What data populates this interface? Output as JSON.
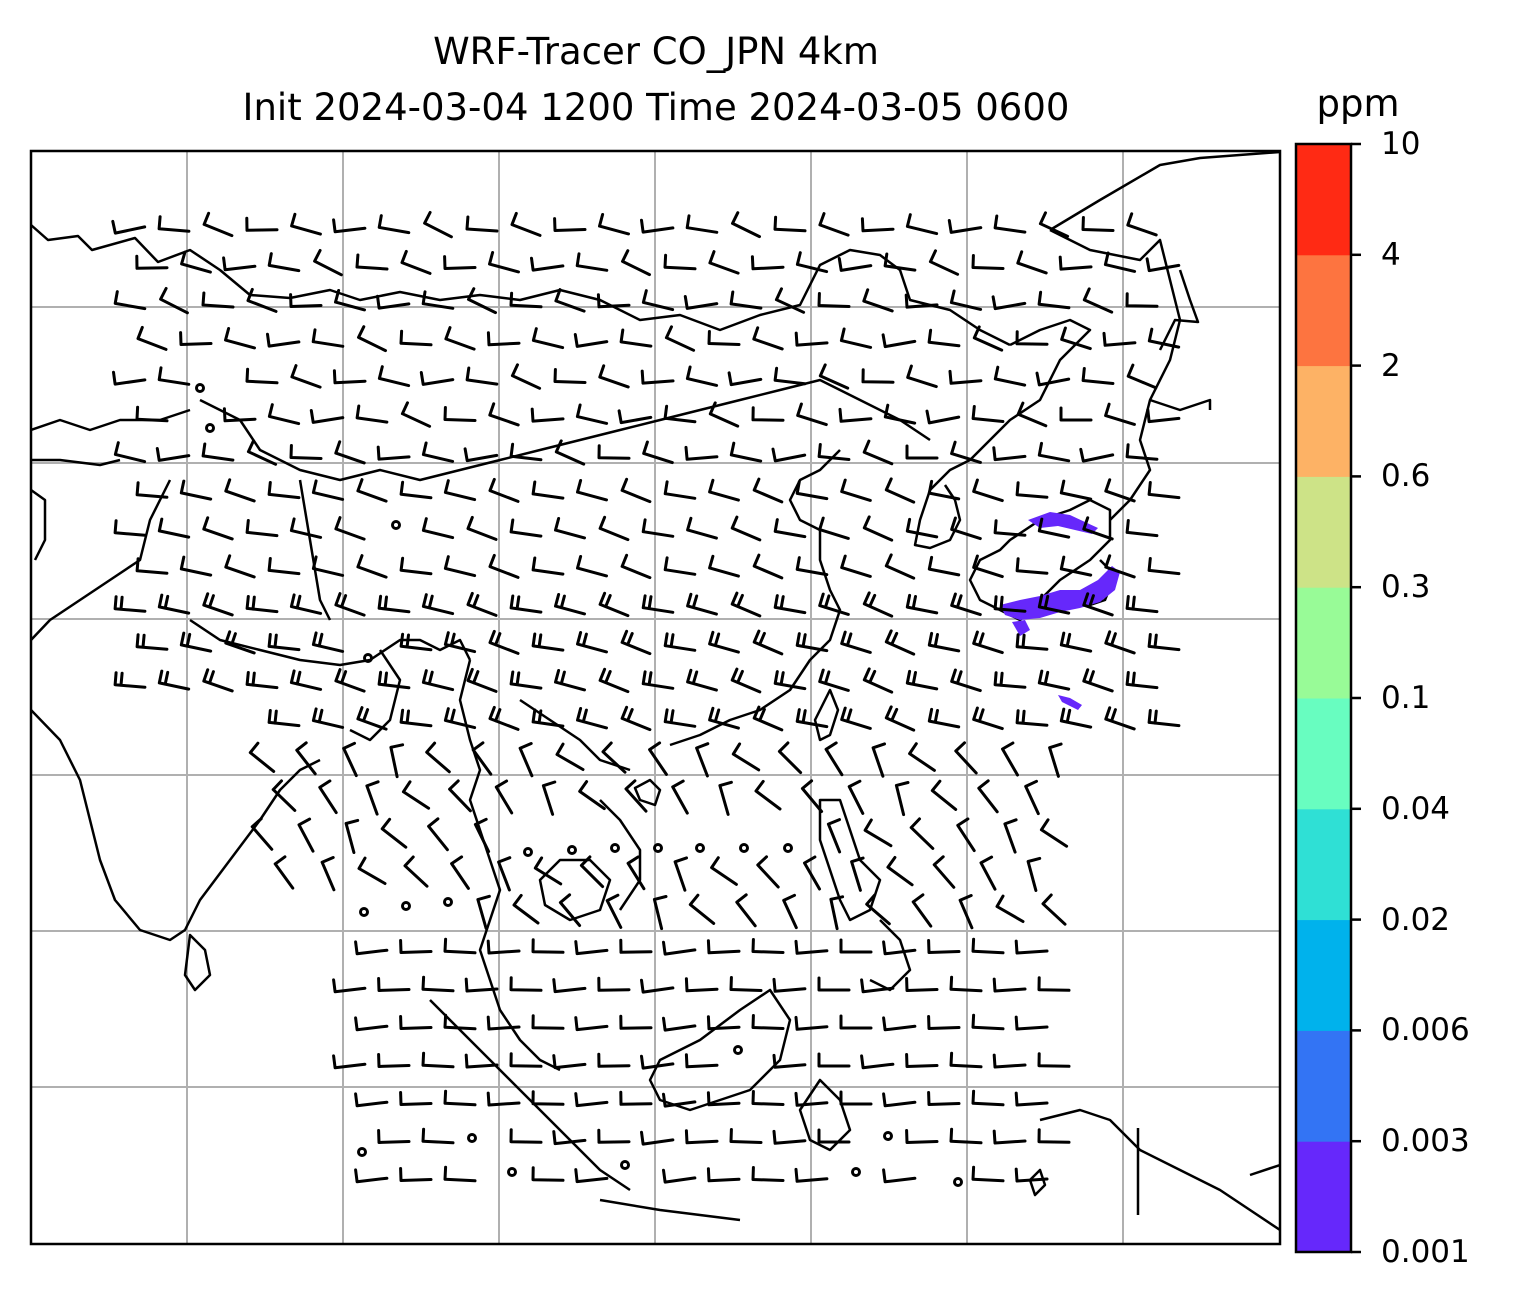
{
  "title_line1": "WRF-Tracer CO_JPN 4km",
  "title_line2": "Init 2024-03-04 1200 Time 2024-03-05 0600",
  "colorbar": {
    "unit": "ppm",
    "levels": [
      "0.001",
      "0.003",
      "0.006",
      "0.02",
      "0.04",
      "0.1",
      "0.3",
      "0.6",
      "2",
      "4",
      "10"
    ],
    "colors": [
      "#6628fb",
      "#3374f4",
      "#00b2ec",
      "#2fe0d5",
      "#68fdc0",
      "#98fb97",
      "#cde387",
      "#fdb265",
      "#fd7440",
      "#ff2a14"
    ]
  },
  "map": {
    "grid": "on",
    "tracer_color": "#6628fb",
    "coastline_color": "#000000",
    "barbs": "wind barbs across domain"
  }
}
